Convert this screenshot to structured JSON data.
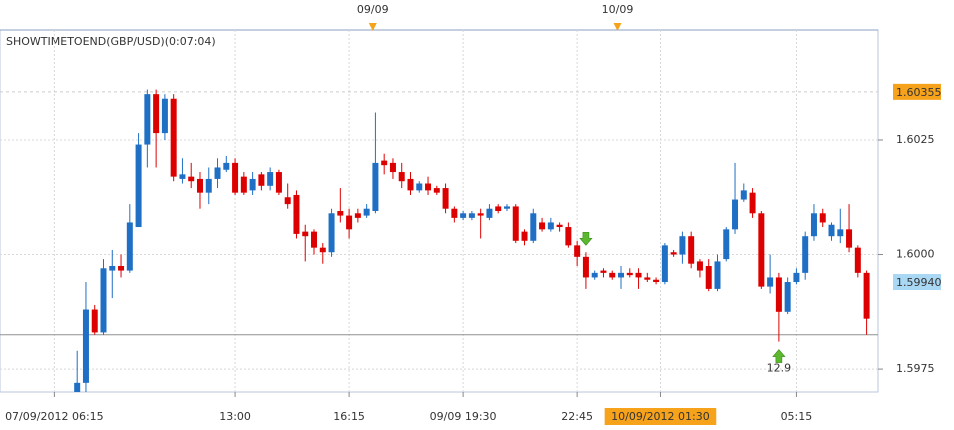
{
  "chart_data": {
    "type": "candlestick",
    "title": "SHOWTIMETOEND(GBP/USD)(0:07:04)",
    "open": [
      1.597,
      1.5972,
      1.5988,
      1.5983,
      1.59965,
      1.59975,
      1.59965,
      1.6006,
      1.6024,
      1.6035,
      1.60265,
      1.6034,
      1.60165,
      1.6017,
      1.60165,
      1.60135,
      1.60165,
      1.60185,
      1.602,
      1.6017,
      1.6014,
      1.60175,
      1.6015,
      1.6018,
      1.60125,
      1.6013,
      1.6005,
      1.6005,
      1.60015,
      1.60005,
      1.60095,
      1.60085,
      1.6009,
      1.60085,
      1.60095,
      1.60205,
      1.602,
      1.6018,
      1.60165,
      1.6014,
      1.60155,
      1.60145,
      1.60145,
      1.601,
      1.6008,
      1.6008,
      1.6009,
      1.6008,
      1.60105,
      1.601,
      1.60105,
      1.6005,
      1.6003,
      1.6007,
      1.60055,
      1.60065,
      1.6006,
      1.6002,
      1.59995,
      1.5995,
      1.59965,
      1.5996,
      1.5995,
      1.5996,
      1.5996,
      1.5995,
      1.59945,
      1.5994,
      1.60005,
      1.6,
      1.6004,
      1.59985,
      1.59975,
      1.59925,
      1.5999,
      1.60055,
      1.6012,
      1.60135,
      1.6009,
      1.5993,
      1.5995,
      1.59875,
      1.5994,
      1.5996,
      1.6004,
      1.6009,
      1.6004,
      1.6004,
      1.60055,
      1.60015,
      1.5996
    ],
    "high": [
      1.5979,
      1.5994,
      1.5989,
      1.5999,
      1.6001,
      1.6,
      1.6011,
      1.60265,
      1.6036,
      1.6036,
      1.6035,
      1.6035,
      1.6021,
      1.602,
      1.6018,
      1.6019,
      1.6021,
      1.60215,
      1.6021,
      1.6018,
      1.6018,
      1.6018,
      1.6019,
      1.60185,
      1.60155,
      1.6014,
      1.60065,
      1.60055,
      1.60025,
      1.601,
      1.60145,
      1.601,
      1.601,
      1.6011,
      1.6031,
      1.6022,
      1.6021,
      1.602,
      1.6018,
      1.6016,
      1.6017,
      1.6015,
      1.60155,
      1.60105,
      1.60095,
      1.60095,
      1.601,
      1.6011,
      1.6011,
      1.6011,
      1.6011,
      1.60055,
      1.601,
      1.6008,
      1.6008,
      1.6007,
      1.6007,
      1.6003,
      1.60005,
      1.59965,
      1.5997,
      1.59965,
      1.59975,
      1.5997,
      1.5997,
      1.5996,
      1.5995,
      1.60025,
      1.6001,
      1.6005,
      1.6005,
      1.5999,
      1.5999,
      1.6,
      1.6006,
      1.602,
      1.60155,
      1.60145,
      1.60095,
      1.6,
      1.5996,
      1.5995,
      1.5997,
      1.6005,
      1.6011,
      1.601,
      1.6007,
      1.601,
      1.6011,
      1.6002,
      1.59965
    ],
    "low": [
      1.597,
      1.597,
      1.59825,
      1.59825,
      1.59905,
      1.5995,
      1.5996,
      1.6006,
      1.6019,
      1.6019,
      1.6025,
      1.6016,
      1.60155,
      1.60145,
      1.601,
      1.6011,
      1.60145,
      1.6018,
      1.6013,
      1.6013,
      1.6013,
      1.6014,
      1.6014,
      1.6013,
      1.601,
      1.60035,
      1.59985,
      1.6,
      1.5998,
      1.59995,
      1.6007,
      1.60035,
      1.6007,
      1.6008,
      1.6009,
      1.60175,
      1.60165,
      1.60145,
      1.6013,
      1.60135,
      1.6013,
      1.6013,
      1.6009,
      1.6007,
      1.60075,
      1.60075,
      1.60035,
      1.60075,
      1.6009,
      1.60095,
      1.60025,
      1.6002,
      1.60025,
      1.6005,
      1.6005,
      1.6005,
      1.60015,
      1.59975,
      1.59925,
      1.59945,
      1.5995,
      1.59945,
      1.59925,
      1.5995,
      1.59925,
      1.5994,
      1.59935,
      1.59935,
      1.59995,
      1.5998,
      1.5997,
      1.5995,
      1.5992,
      1.5992,
      1.59985,
      1.60045,
      1.60115,
      1.6008,
      1.59925,
      1.59915,
      1.5981,
      1.5987,
      1.59935,
      1.59945,
      1.6003,
      1.6006,
      1.6003,
      1.60025,
      1.60005,
      1.5995,
      1.59825
    ],
    "close": [
      1.5972,
      1.5988,
      1.5983,
      1.5997,
      1.59975,
      1.59965,
      1.6007,
      1.6024,
      1.6035,
      1.60265,
      1.6034,
      1.6017,
      1.60175,
      1.6016,
      1.60135,
      1.60165,
      1.6019,
      1.602,
      1.60135,
      1.60135,
      1.60165,
      1.6015,
      1.6018,
      1.60135,
      1.6011,
      1.60045,
      1.6004,
      1.60015,
      1.60005,
      1.6009,
      1.60085,
      1.60055,
      1.6008,
      1.601,
      1.602,
      1.60195,
      1.6018,
      1.6016,
      1.6014,
      1.60155,
      1.6014,
      1.60135,
      1.601,
      1.6008,
      1.6009,
      1.6009,
      1.60085,
      1.601,
      1.60095,
      1.60105,
      1.6003,
      1.6003,
      1.6009,
      1.60055,
      1.6007,
      1.6006,
      1.6002,
      1.59995,
      1.5995,
      1.5996,
      1.5996,
      1.5995,
      1.5996,
      1.59955,
      1.5995,
      1.59945,
      1.5994,
      1.6002,
      1.6,
      1.6004,
      1.5998,
      1.59965,
      1.59925,
      1.59985,
      1.60055,
      1.6012,
      1.6014,
      1.6009,
      1.5993,
      1.5995,
      1.59875,
      1.5994,
      1.5996,
      1.6004,
      1.6009,
      1.6007,
      1.60065,
      1.60055,
      1.60015,
      1.5996,
      1.5986
    ],
    "up_color": "#1f6fc5",
    "down_color": "#dd0000",
    "ylim": [
      1.597,
      1.6049
    ],
    "yticks": [
      1.5975,
      {
        "value": 1.6,
        "label": "1.6000"
      },
      1.6025
    ],
    "xlim": [
      -8.8,
      91.3
    ],
    "xticks": [
      {
        "value": -2.6,
        "label": "07/09/2012 06:15"
      },
      {
        "value": 18,
        "label": "13:00"
      },
      {
        "value": 31,
        "label": "16:15"
      },
      {
        "value": 44,
        "label": "09/09 19:30"
      },
      {
        "value": 57,
        "label": "22:45"
      },
      {
        "value": 66.5,
        "label": "10/09/2012 01:30"
      },
      {
        "value": 82,
        "label": "05:15"
      }
    ],
    "highlight_xtick": 5,
    "top_markers": [
      {
        "value": 33.7,
        "label": "09/09"
      },
      {
        "value": 61.6,
        "label": "10/09"
      }
    ],
    "price_labels": [
      {
        "value": 1.60355,
        "color": "#f7a21b",
        "line": true
      },
      {
        "value": 1.5994,
        "label": "1.59940",
        "color": "#a9d8f5",
        "line": false
      }
    ],
    "levels": [
      1.59825
    ],
    "signals": [
      {
        "index": 58,
        "direction": "down"
      },
      {
        "index": 80,
        "direction": "up",
        "label": "12.9"
      }
    ],
    "grid": true
  }
}
